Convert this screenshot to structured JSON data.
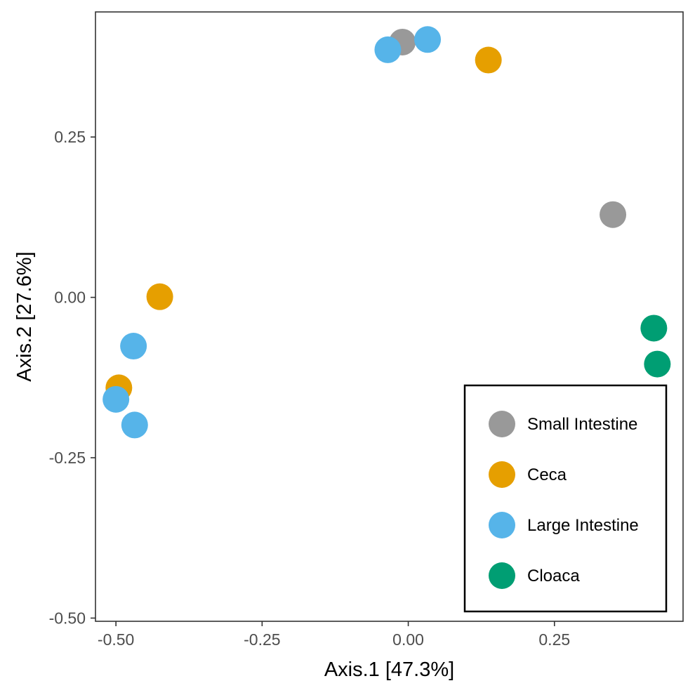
{
  "chart_data": {
    "type": "scatter",
    "title": "",
    "xlabel": "Axis.1   [47.3%]",
    "ylabel": "Axis.2   [27.6%]",
    "xlim": [
      -0.535,
      0.47
    ],
    "ylim": [
      -0.505,
      0.445
    ],
    "x_ticks": [
      -0.5,
      -0.25,
      0.0,
      0.25
    ],
    "x_tick_labels": [
      "-0.50",
      "-0.25",
      "0.00",
      "0.25"
    ],
    "y_ticks": [
      -0.5,
      -0.25,
      0.0,
      0.25
    ],
    "y_tick_labels": [
      "-0.50",
      "-0.25",
      "0.00",
      "0.25"
    ],
    "grid": false,
    "legend_position": "bottom-right",
    "series": [
      {
        "name": "Small Intestine",
        "color": "#999999",
        "points": [
          {
            "x": -0.01,
            "y": 0.398
          },
          {
            "x": 0.35,
            "y": 0.129
          }
        ]
      },
      {
        "name": "Ceca",
        "color": "#E69F00",
        "points": [
          {
            "x": 0.137,
            "y": 0.37
          },
          {
            "x": -0.425,
            "y": 0.001
          },
          {
            "x": -0.495,
            "y": -0.141
          }
        ]
      },
      {
        "name": "Large Intestine",
        "color": "#56B4E9",
        "points": [
          {
            "x": -0.035,
            "y": 0.386
          },
          {
            "x": 0.033,
            "y": 0.402
          },
          {
            "x": -0.47,
            "y": -0.076
          },
          {
            "x": -0.5,
            "y": -0.159
          },
          {
            "x": -0.468,
            "y": -0.199
          }
        ]
      },
      {
        "name": "Cloaca",
        "color": "#009E73",
        "points": [
          {
            "x": 0.42,
            "y": -0.048
          },
          {
            "x": 0.426,
            "y": -0.104
          }
        ]
      }
    ]
  }
}
